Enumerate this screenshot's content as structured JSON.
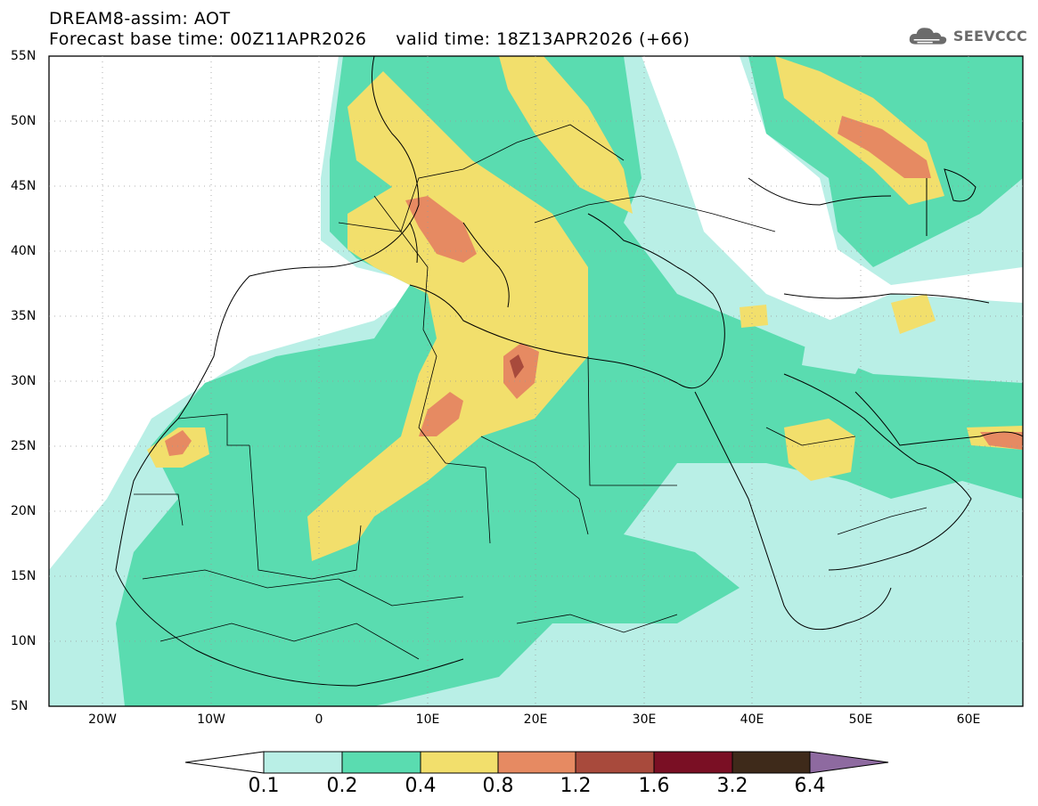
{
  "header": {
    "title_line1": "DREAM8-assim: AOT",
    "title_line2": "Forecast base time: 00Z11APR2026     valid time: 18Z13APR2026 (+66)",
    "logo_text": "SEEVCCC"
  },
  "axes": {
    "lat_labels": [
      "55N",
      "50N",
      "45N",
      "40N",
      "35N",
      "30N",
      "25N",
      "20N",
      "15N",
      "10N",
      "5N"
    ],
    "lon_labels": [
      "20W",
      "10W",
      "0",
      "10E",
      "20E",
      "30E",
      "40E",
      "50E",
      "60E"
    ]
  },
  "colorbar": {
    "levels": [
      "0.1",
      "0.2",
      "0.4",
      "0.8",
      "1.2",
      "1.6",
      "3.2",
      "6.4"
    ],
    "colors": [
      "#b9efe6",
      "#5adcb0",
      "#f2df6c",
      "#e68a62",
      "#a84a3c",
      "#7a0f24",
      "#3e2a1a",
      "#8e6aa0"
    ]
  }
}
